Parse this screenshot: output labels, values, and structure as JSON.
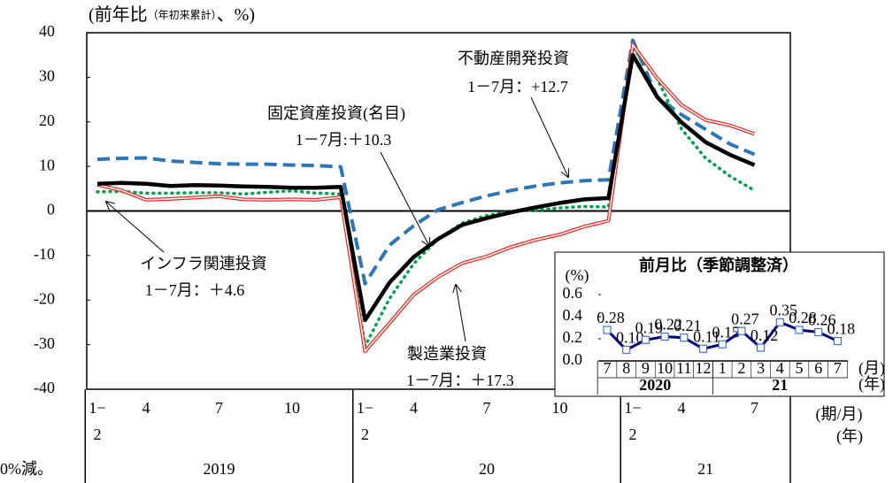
{
  "chart_data": [
    {
      "type": "line",
      "y_label": {
        "main": "(前年比",
        "sub": "（年初来累計）",
        "end": "、%)"
      },
      "categories": [
        "1−\n2",
        null,
        "4",
        null,
        null,
        "7",
        null,
        null,
        "10",
        null,
        null,
        "1−\n2",
        null,
        "4",
        null,
        null,
        "7",
        null,
        null,
        "10",
        null,
        null,
        "1−\n2",
        null,
        "4",
        null,
        null,
        "7"
      ],
      "years": [
        "2019",
        "20",
        "21"
      ],
      "x_unit": "(期/月)",
      "year_unit": "(年)",
      "ylim": [
        -40,
        40
      ],
      "yticks": [
        -40,
        -30,
        -20,
        -10,
        0,
        10,
        20,
        30,
        40
      ],
      "series": [
        {
          "name": "不動産開発投資",
          "note": "1－7月：+12.7",
          "color": "#2e75b6",
          "style": "dashed",
          "values": [
            11.6,
            11.8,
            11.9,
            11.2,
            10.9,
            10.6,
            10.5,
            10.5,
            10.3,
            10.2,
            9.9,
            -16.3,
            -7.7,
            -3.3,
            0.3,
            1.9,
            3.4,
            4.6,
            5.6,
            6.3,
            6.8,
            7.0,
            38.3,
            25.6,
            21.6,
            18.3,
            15.0,
            12.7
          ]
        },
        {
          "name": "インフラ関連投資",
          "note": "1－7月：＋4.6",
          "color": "#00a050",
          "style": "dotted",
          "values": [
            4.3,
            4.4,
            4.0,
            4.0,
            4.1,
            4.1,
            3.8,
            4.2,
            4.5,
            4.0,
            3.8,
            -30.3,
            -19.7,
            -11.8,
            -6.3,
            -2.7,
            -1.0,
            -0.1,
            0.2,
            0.7,
            1.0,
            0.9,
            36.6,
            29.7,
            18.4,
            11.8,
            7.8,
            4.6
          ]
        },
        {
          "name": "製造業投資",
          "note": "1－7月：＋17.3",
          "color": "#e8281e",
          "style": "double",
          "values": [
            5.9,
            4.6,
            2.5,
            2.7,
            3.0,
            3.3,
            2.6,
            2.5,
            2.6,
            2.5,
            3.1,
            -31.5,
            -25.2,
            -18.8,
            -14.8,
            -11.7,
            -10.2,
            -8.1,
            -6.5,
            -5.3,
            -3.5,
            -2.2,
            37.3,
            29.8,
            23.8,
            20.4,
            19.2,
            17.3
          ]
        },
        {
          "name": "固定資産投資(名目)",
          "note": "1－7月:＋10.3",
          "color": "#000000",
          "style": "solid",
          "values": [
            6.1,
            6.3,
            6.1,
            5.6,
            5.8,
            5.7,
            5.5,
            5.4,
            5.2,
            5.2,
            5.4,
            -24.5,
            -16.1,
            -10.3,
            -6.3,
            -3.1,
            -1.6,
            -0.3,
            0.8,
            1.8,
            2.6,
            2.9,
            35.0,
            25.6,
            19.9,
            15.4,
            12.6,
            10.3
          ]
        }
      ]
    },
    {
      "type": "line",
      "title": "前月比（季節調整済）",
      "y_label": "(%)",
      "categories": [
        "7",
        "8",
        "9",
        "10",
        "11",
        "12",
        "1",
        "2",
        "3",
        "4",
        "5",
        "6",
        "7"
      ],
      "years": [
        "2020",
        "21"
      ],
      "x_unit": "(月)",
      "year_unit": "(年)",
      "ylim": [
        0,
        0.6
      ],
      "yticks": [
        {
          "value": 0,
          "label": "0.0"
        },
        0.2,
        0.4,
        0.6
      ],
      "color": "#00007f",
      "values": [
        0.28,
        0.1,
        0.19,
        0.22,
        0.21,
        0.11,
        0.15,
        0.27,
        0.12,
        0.35,
        0.28,
        0.26,
        0.18
      ],
      "value_labels": [
        "0.28",
        "0.10",
        "0.19",
        "0.22",
        "0.21",
        "0.11",
        "0.15",
        "0.27",
        "0.12",
        "0.35",
        "0.28",
        "0.26",
        "0.18"
      ]
    }
  ],
  "page_fragment": "0%減。"
}
